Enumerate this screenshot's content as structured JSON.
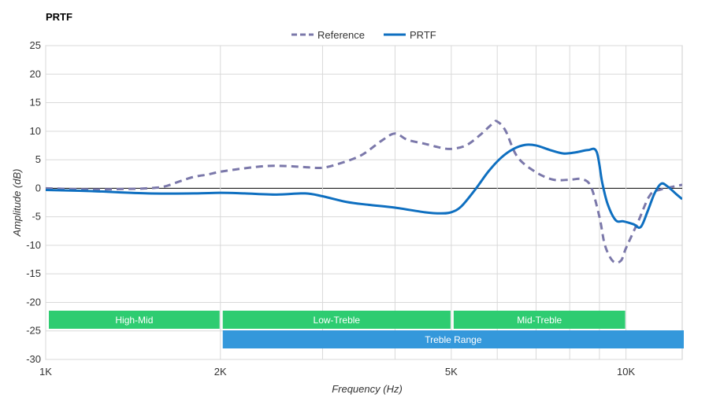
{
  "chart_data": {
    "type": "line",
    "title": "PRTF",
    "xlabel": "Frequency (Hz)",
    "ylabel": "Amplitude (dB)",
    "x_scale": "log",
    "xlim": [
      1000,
      12500
    ],
    "ylim": [
      -30,
      25
    ],
    "x_ticks": [
      {
        "value": 1000,
        "label": "1K"
      },
      {
        "value": 2000,
        "label": "2K"
      },
      {
        "value": 5000,
        "label": "5K"
      },
      {
        "value": 10000,
        "label": "10K"
      }
    ],
    "x_gridlines": [
      1000,
      2000,
      3000,
      4000,
      5000,
      6000,
      7000,
      8000,
      9000,
      10000
    ],
    "y_ticks": [
      25,
      20,
      15,
      10,
      5,
      0,
      -5,
      -10,
      -15,
      -20,
      -25,
      -30
    ],
    "grid": true,
    "legend_position": "top-center",
    "series": [
      {
        "name": "Reference",
        "color": "#7b78aa",
        "dash": "dashed",
        "points": [
          [
            1000,
            0.0
          ],
          [
            1200,
            -0.2
          ],
          [
            1400,
            -0.1
          ],
          [
            1500,
            0.0
          ],
          [
            1600,
            0.3
          ],
          [
            1700,
            1.2
          ],
          [
            1800,
            2.0
          ],
          [
            1900,
            2.4
          ],
          [
            2000,
            2.9
          ],
          [
            2200,
            3.5
          ],
          [
            2400,
            3.9
          ],
          [
            2600,
            3.9
          ],
          [
            2800,
            3.7
          ],
          [
            3000,
            3.6
          ],
          [
            3200,
            4.3
          ],
          [
            3500,
            5.8
          ],
          [
            3800,
            8.4
          ],
          [
            4000,
            9.6
          ],
          [
            4200,
            8.5
          ],
          [
            4500,
            7.8
          ],
          [
            4800,
            7.1
          ],
          [
            5000,
            6.9
          ],
          [
            5300,
            7.5
          ],
          [
            5600,
            9.3
          ],
          [
            5900,
            11.4
          ],
          [
            6000,
            11.7
          ],
          [
            6200,
            10.1
          ],
          [
            6500,
            5.5
          ],
          [
            7000,
            2.8
          ],
          [
            7500,
            1.5
          ],
          [
            8000,
            1.5
          ],
          [
            8400,
            1.6
          ],
          [
            8700,
            0.3
          ],
          [
            9000,
            -5.0
          ],
          [
            9200,
            -10.0
          ],
          [
            9500,
            -12.8
          ],
          [
            9800,
            -12.7
          ],
          [
            10000,
            -10.5
          ],
          [
            10500,
            -5.8
          ],
          [
            11000,
            -1.2
          ],
          [
            11500,
            -0.2
          ],
          [
            12500,
            0.6
          ]
        ]
      },
      {
        "name": "PRTF",
        "color": "#0e6fc0",
        "dash": "solid",
        "points": [
          [
            1000,
            -0.3
          ],
          [
            1200,
            -0.5
          ],
          [
            1500,
            -0.9
          ],
          [
            1800,
            -0.9
          ],
          [
            2000,
            -0.8
          ],
          [
            2200,
            -0.9
          ],
          [
            2500,
            -1.1
          ],
          [
            2800,
            -0.9
          ],
          [
            3000,
            -1.4
          ],
          [
            3300,
            -2.4
          ],
          [
            3600,
            -2.9
          ],
          [
            4000,
            -3.4
          ],
          [
            4500,
            -4.2
          ],
          [
            4800,
            -4.4
          ],
          [
            5000,
            -4.2
          ],
          [
            5200,
            -3.2
          ],
          [
            5500,
            -0.2
          ],
          [
            5800,
            3.0
          ],
          [
            6100,
            5.4
          ],
          [
            6400,
            6.9
          ],
          [
            6700,
            7.6
          ],
          [
            7000,
            7.5
          ],
          [
            7400,
            6.7
          ],
          [
            7800,
            6.1
          ],
          [
            8200,
            6.3
          ],
          [
            8600,
            6.7
          ],
          [
            8900,
            6.4
          ],
          [
            9100,
            1.0
          ],
          [
            9300,
            -2.8
          ],
          [
            9600,
            -5.6
          ],
          [
            9900,
            -5.8
          ],
          [
            10300,
            -6.3
          ],
          [
            10600,
            -6.8
          ],
          [
            10900,
            -4.0
          ],
          [
            11200,
            -0.9
          ],
          [
            11500,
            0.8
          ],
          [
            11800,
            0.3
          ],
          [
            12200,
            -1.0
          ],
          [
            12500,
            -1.9
          ]
        ]
      }
    ],
    "bands": [
      {
        "label": "High-Mid",
        "start": 1000,
        "end": 2000,
        "row": 0,
        "color": "#2ecc71"
      },
      {
        "label": "Low-Treble",
        "start": 2000,
        "end": 5000,
        "row": 0,
        "color": "#2ecc71"
      },
      {
        "label": "Mid-Treble",
        "start": 5000,
        "end": 10000,
        "row": 0,
        "color": "#2ecc71"
      },
      {
        "label": "Treble Range",
        "start": 2000,
        "end": 12500,
        "row": 1,
        "color": "#3498db"
      }
    ]
  }
}
